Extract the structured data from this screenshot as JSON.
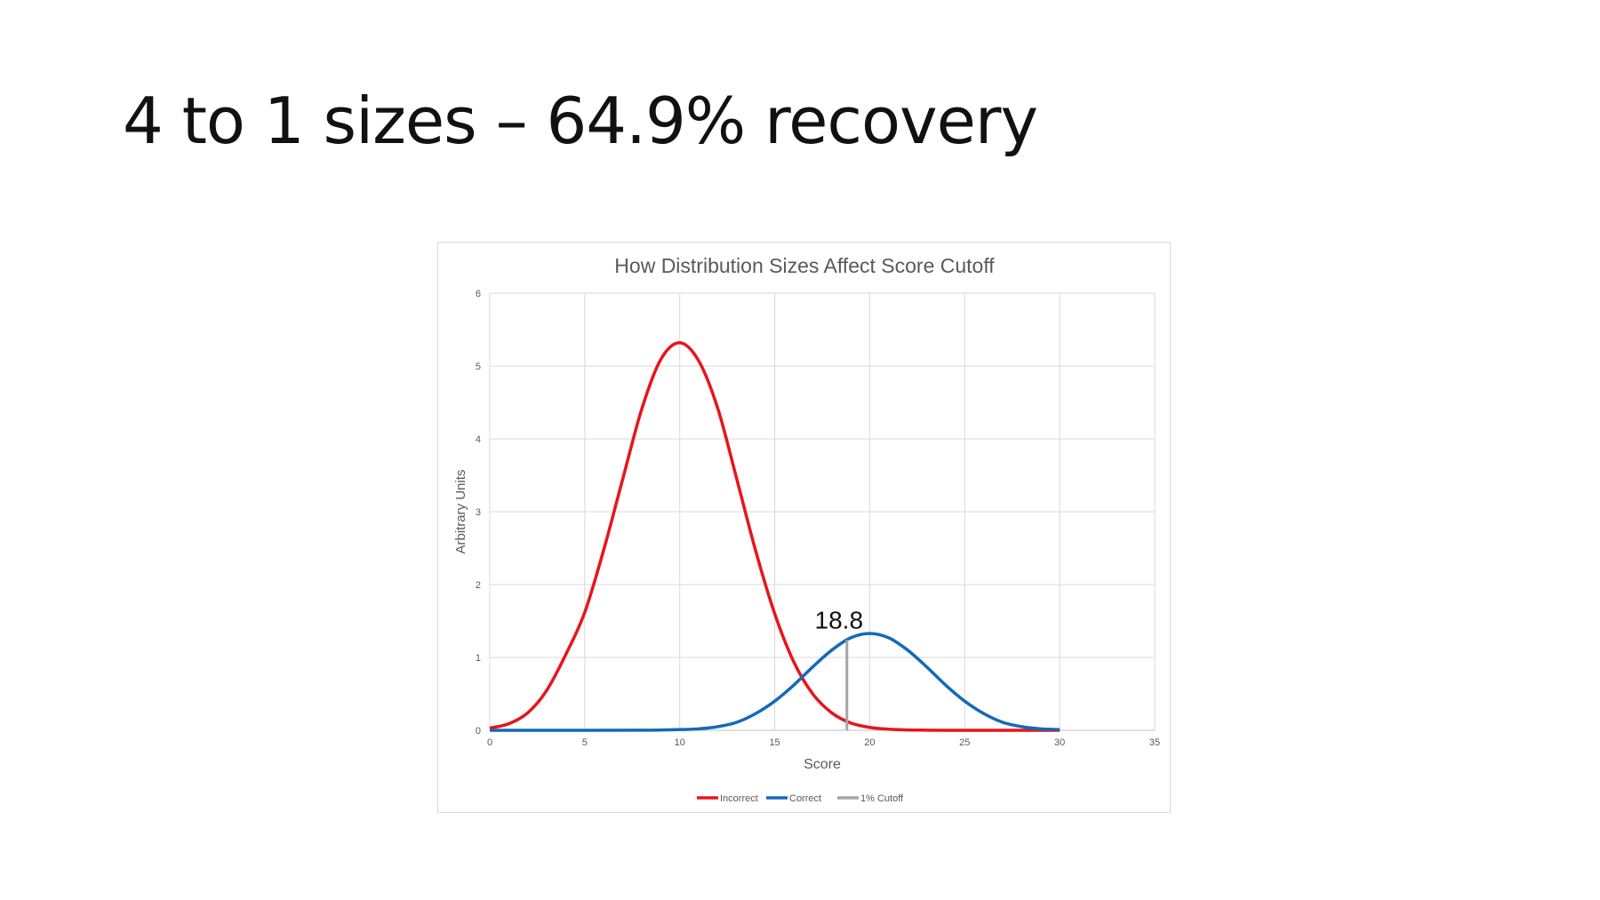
{
  "slide": {
    "title": "4 to 1 sizes – 64.9% recovery"
  },
  "chart_data": {
    "type": "line",
    "title": "How Distribution Sizes Affect Score Cutoff",
    "xlabel": "Score",
    "ylabel": "Arbitrary Units",
    "xlim": [
      0,
      35
    ],
    "ylim": [
      0,
      6
    ],
    "xticks": [
      0,
      5,
      10,
      15,
      20,
      25,
      30,
      35
    ],
    "yticks": [
      0,
      1,
      2,
      3,
      4,
      5,
      6
    ],
    "grid": true,
    "legend": "bottom",
    "series": [
      {
        "name": "Incorrect",
        "color": "#e8141b",
        "x": [
          0,
          1,
          2,
          3,
          4,
          5,
          6,
          7,
          8,
          9,
          10,
          11,
          12,
          13,
          14,
          15,
          16,
          17,
          18,
          19,
          20,
          21,
          22,
          23,
          24,
          25,
          26,
          27,
          28,
          29,
          30
        ],
        "y": [
          0.03,
          0.09,
          0.24,
          0.55,
          1.04,
          1.62,
          2.48,
          3.45,
          4.41,
          5.09,
          5.32,
          5.07,
          4.42,
          3.45,
          2.46,
          1.6,
          0.94,
          0.5,
          0.24,
          0.1,
          0.04,
          0.015,
          0.005,
          0.002,
          0.0,
          0.0,
          0.0,
          0.0,
          0.0,
          0.0,
          0.0
        ]
      },
      {
        "name": "Correct",
        "color": "#1469b8",
        "x": [
          0,
          5,
          8,
          10,
          11,
          12,
          13,
          14,
          15,
          16,
          17,
          18,
          19,
          20,
          21,
          22,
          23,
          24,
          25,
          26,
          27,
          28,
          29,
          30
        ],
        "y": [
          0.0,
          0.0,
          0.001,
          0.01,
          0.02,
          0.05,
          0.11,
          0.23,
          0.4,
          0.62,
          0.87,
          1.1,
          1.27,
          1.33,
          1.27,
          1.1,
          0.87,
          0.62,
          0.4,
          0.23,
          0.11,
          0.05,
          0.02,
          0.01
        ]
      },
      {
        "name": "1% Cutoff",
        "color": "#a5a5a5",
        "x": [
          18.8,
          18.8
        ],
        "y": [
          0,
          1.24
        ]
      }
    ],
    "annotations": [
      {
        "text": "18.8",
        "x": 18.8,
        "y": 1.24
      }
    ]
  }
}
